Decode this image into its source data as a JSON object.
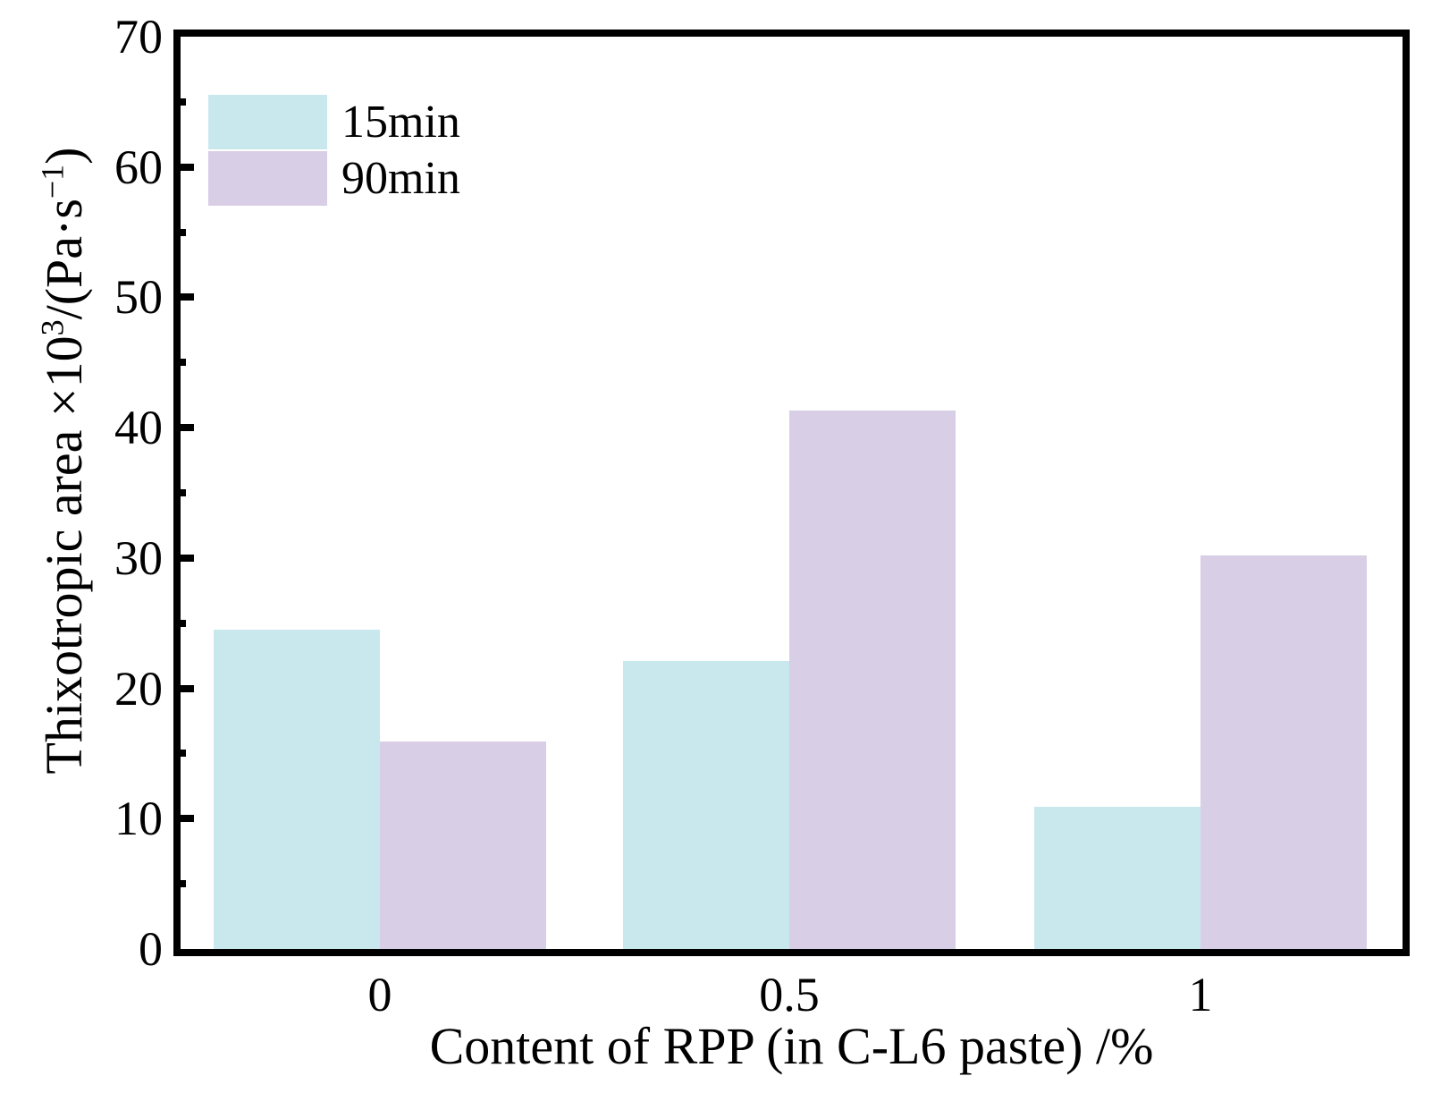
{
  "figure": {
    "background": "#ffffff",
    "axis_color": "#000000",
    "legend": {
      "position": "top-left",
      "items": [
        {
          "label": "15min",
          "color": "#c9e8ed"
        },
        {
          "label": "90min",
          "color": "#d8cee6"
        }
      ]
    },
    "y_axis": {
      "title_parts": {
        "prefix": "Thixotropic area ×10",
        "sup1": "3",
        "mid": "/(Pa·s",
        "sup2": "−1",
        "suffix": ")"
      },
      "tick_labels": [
        "0",
        "10",
        "20",
        "30",
        "40",
        "50",
        "60",
        "70"
      ]
    },
    "x_axis": {
      "title": "Content of RPP (in C-L6 paste) /%",
      "tick_labels": [
        "0",
        "0.5",
        "1"
      ]
    }
  },
  "chart_data": {
    "type": "bar",
    "title": "",
    "xlabel": "Content of RPP (in C-L6 paste) /%",
    "ylabel": "Thixotropic area ×10³/(Pa·s⁻¹)",
    "categories": [
      "0",
      "0.5",
      "1"
    ],
    "series": [
      {
        "name": "15min",
        "color": "#c9e8ed",
        "values": [
          24.5,
          22.1,
          10.9
        ]
      },
      {
        "name": "90min",
        "color": "#d8cee6",
        "values": [
          15.9,
          41.3,
          30.2
        ]
      }
    ],
    "ylim": [
      0,
      70
    ],
    "y_major_step": 10,
    "y_minor_step": 5,
    "grid": false,
    "legend_position": "upper left"
  }
}
